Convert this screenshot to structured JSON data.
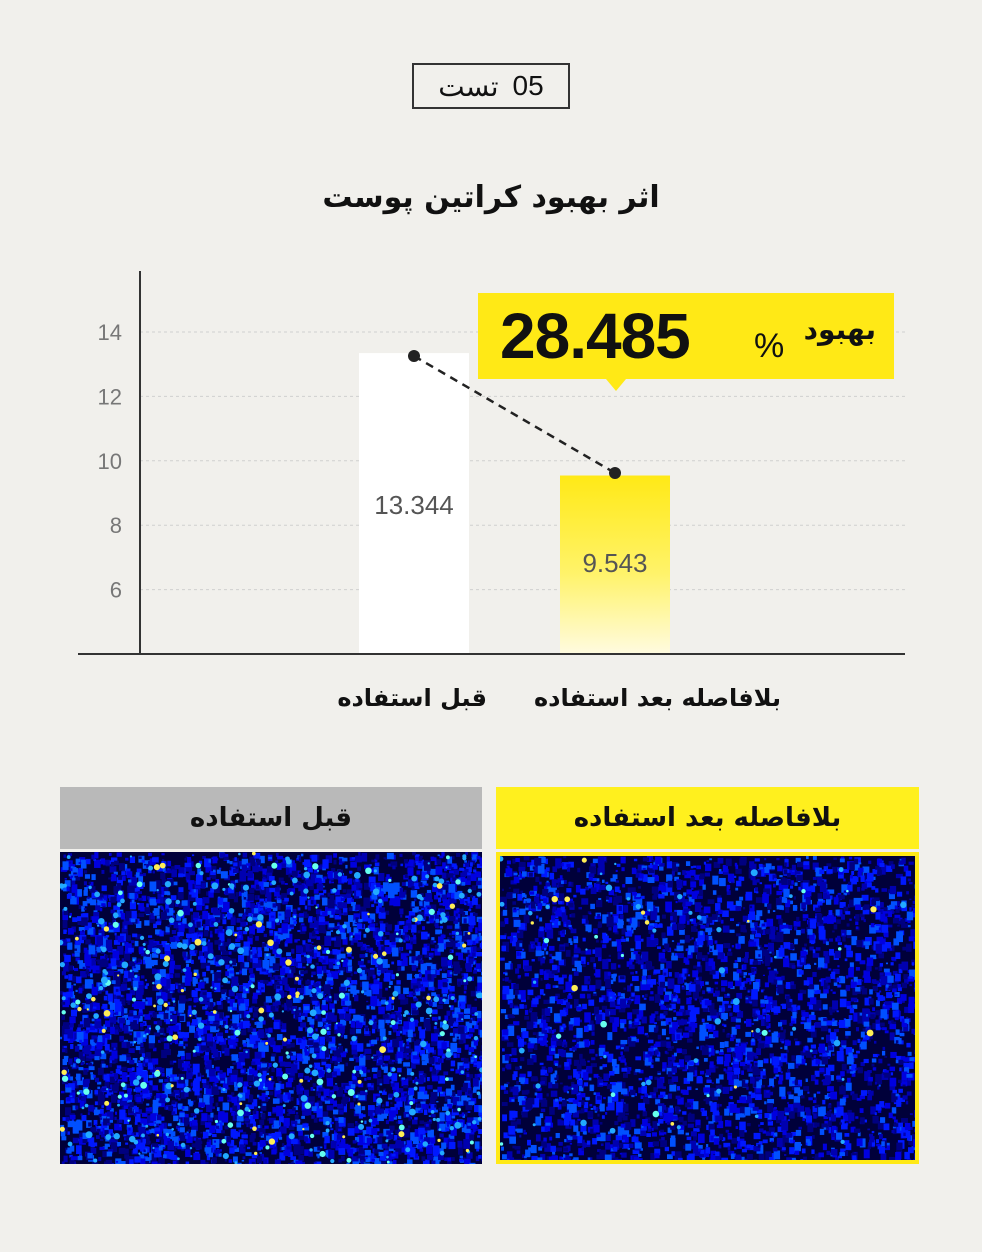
{
  "badge": {
    "number": "05",
    "word": "تست"
  },
  "title": "اثر بهبود کراتین پوست",
  "callout": {
    "value": "28.485",
    "percent": "%",
    "word": "بهبود"
  },
  "panels": {
    "before_label": "قبل استفاده",
    "after_label": "بلافاصله بعد استفاده"
  },
  "colors": {
    "background": "#f1f0ec",
    "highlight": "#ffe916",
    "before_bar": "#ffffff",
    "after_bar": "#ffe916",
    "grid": "#cfcfcf",
    "heatmap_base": "#00008b"
  },
  "chart_data": {
    "type": "bar",
    "categories": [
      "قبل استفاده",
      "بلافاصله بعد استفاده"
    ],
    "values": [
      13.344,
      9.543
    ],
    "value_labels": [
      "13.344",
      "9.543"
    ],
    "yticks": [
      6,
      8,
      10,
      12,
      14
    ],
    "ylim": [
      4,
      15.8
    ],
    "grid": true,
    "connector": "dashed line between bar tops",
    "title": "اثر بهبود کراتین پوست"
  }
}
